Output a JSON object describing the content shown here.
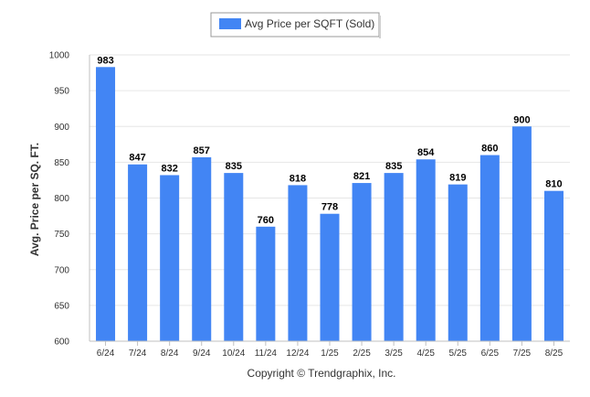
{
  "colors": {
    "bar": "#4285f4",
    "grid": "#e6e6e6",
    "axis": "#c0c0c0"
  },
  "footer": {
    "copyright": "Copyright © Trendgraphix, Inc."
  },
  "chart_data": {
    "type": "bar",
    "categories": [
      "6/24",
      "7/24",
      "8/24",
      "9/24",
      "10/24",
      "11/24",
      "12/24",
      "1/25",
      "2/25",
      "3/25",
      "4/25",
      "5/25",
      "6/25",
      "7/25",
      "8/25"
    ],
    "series": [
      {
        "name": "Avg Price per SQFT (Sold)",
        "values": [
          983,
          847,
          832,
          857,
          835,
          760,
          818,
          778,
          821,
          835,
          854,
          819,
          860,
          900,
          810
        ]
      }
    ],
    "ylabel": "Avg. Price per SQ. FT.",
    "xlabel": "",
    "ylim": [
      600,
      1000
    ],
    "yticks": [
      600,
      650,
      700,
      750,
      800,
      850,
      900,
      950,
      1000
    ],
    "grid": true,
    "legend_position": "top-center",
    "data_labels": true
  }
}
